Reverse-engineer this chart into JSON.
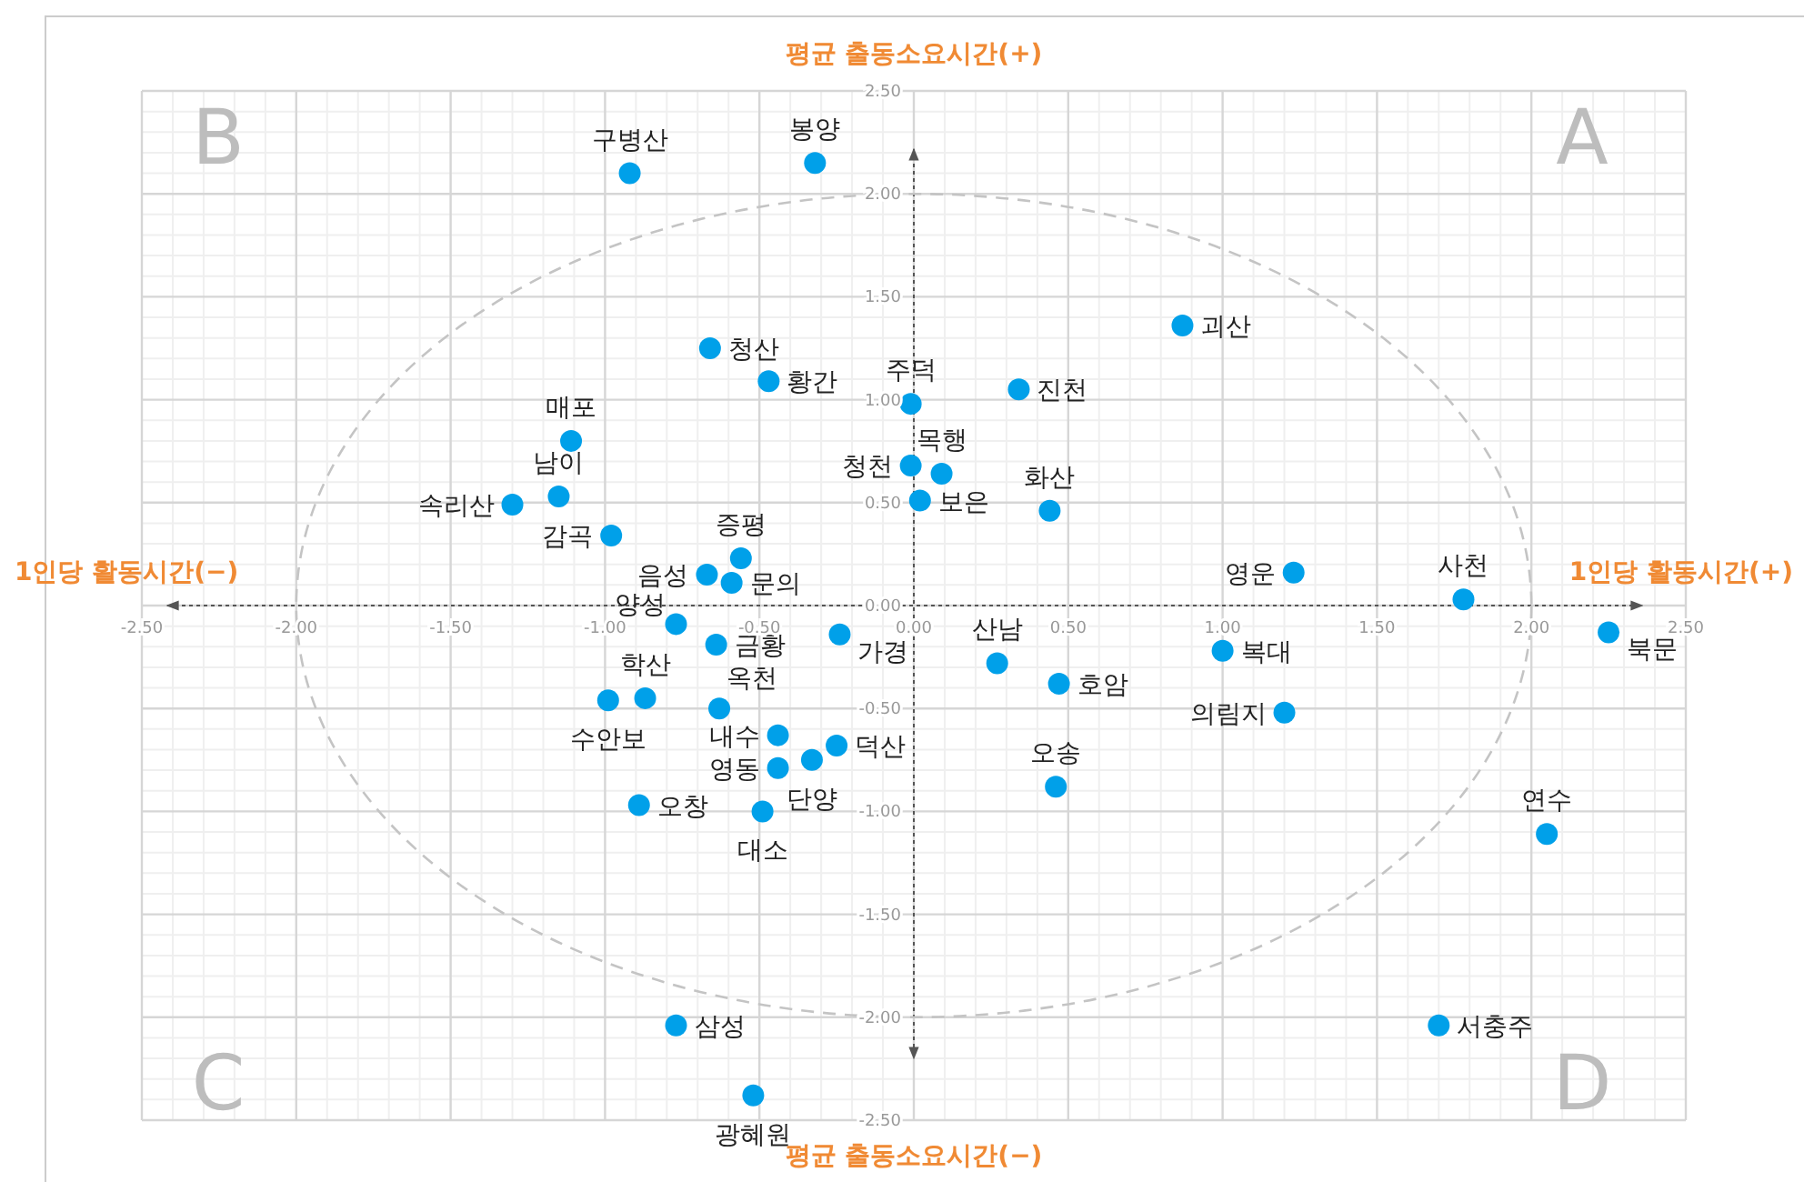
{
  "chart_data": {
    "type": "scatter",
    "marker": "circle",
    "grid": true,
    "xlim": [
      -2.5,
      2.5
    ],
    "ylim": [
      -2.5,
      2.5
    ],
    "xticks": [
      {
        "value": -2.5,
        "label": "-2.50"
      },
      {
        "value": -2,
        "label": "-2.00"
      },
      {
        "value": -1.5,
        "label": "-1.50"
      },
      {
        "value": -1,
        "label": "-1.00"
      },
      {
        "value": -0.5,
        "label": "-0.50"
      },
      {
        "value": 0,
        "label": "0.00"
      },
      {
        "value": 0.5,
        "label": "0.50"
      },
      {
        "value": 1,
        "label": "1.00"
      },
      {
        "value": 1.5,
        "label": "1.50"
      },
      {
        "value": 2,
        "label": "2.00"
      },
      {
        "value": 2.5,
        "label": "2.50"
      }
    ],
    "yticks": [
      {
        "value": -2.5,
        "label": "-2.50"
      },
      {
        "value": -2,
        "label": "-2.00"
      },
      {
        "value": -1.5,
        "label": "-1.50"
      },
      {
        "value": -1,
        "label": "-1.00"
      },
      {
        "value": -0.5,
        "label": "-0.50"
      },
      {
        "value": 0,
        "label": "0.00"
      },
      {
        "value": 0.5,
        "label": "0.50"
      },
      {
        "value": 1,
        "label": "1.00"
      },
      {
        "value": 1.5,
        "label": "1.50"
      },
      {
        "value": 2,
        "label": "2.00"
      },
      {
        "value": 2.5,
        "label": "2.50"
      }
    ],
    "series": [
      {
        "color": "#00a0e9",
        "x": [
          -0.92,
          -0.32,
          0.87,
          0.34,
          -0.01,
          -0.01,
          0.09,
          0.02,
          0.44,
          -0.66,
          -0.47,
          -1.11,
          -1.15,
          -1.3,
          -0.98,
          -0.56,
          -0.67,
          -0.59,
          1.23,
          1.78,
          2.25,
          1.0,
          0.47,
          0.27,
          1.2,
          0.46,
          2.05,
          1.7,
          -0.77,
          -0.87,
          -0.99,
          -0.64,
          -0.24,
          -0.63,
          -0.44,
          -0.44,
          -0.33,
          -0.25,
          -0.89,
          -0.49,
          -0.77,
          -0.52
        ],
        "values": [
          2.1,
          2.15,
          1.36,
          1.05,
          0.98,
          0.68,
          0.64,
          0.51,
          0.46,
          1.25,
          1.09,
          0.8,
          0.53,
          0.49,
          0.34,
          0.23,
          0.15,
          0.11,
          0.16,
          0.03,
          -0.13,
          -0.22,
          -0.38,
          -0.28,
          -0.52,
          -0.88,
          -1.11,
          -2.04,
          -0.09,
          -0.45,
          -0.46,
          -0.19,
          -0.14,
          -0.5,
          -0.63,
          -0.79,
          -0.75,
          -0.68,
          -0.97,
          -1.0,
          -2.04,
          -2.38
        ],
        "value_labels": [
          "구병산",
          "봉양",
          "괴산",
          "진천",
          "주덕",
          "청천",
          "목행",
          "보은",
          "화산",
          "청산",
          "황간",
          "매포",
          "남이",
          "속리산",
          "감곡",
          "증평",
          "음성",
          "문의",
          "영운",
          "사천",
          "북문",
          "복대",
          "호암",
          "산남",
          "의림지",
          "오송",
          "연수",
          "서충주",
          "양성",
          "학산",
          "수안보",
          "금황",
          "가경",
          "옥천",
          "내수",
          "영동",
          "단양",
          "덕산",
          "오창",
          "대소",
          "삼성",
          "광혜원"
        ]
      }
    ],
    "annotations": [
      "평균 출동소요시간(+)",
      "평균 출동소요시간(−)",
      "1인당 활동시간(−)",
      "1인당 활동시간(+)",
      "A",
      "B",
      "C",
      "D"
    ]
  }
}
